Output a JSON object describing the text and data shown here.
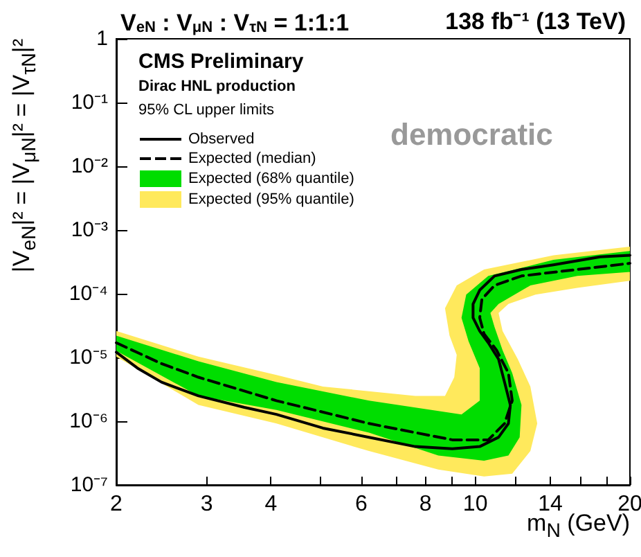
{
  "chart_data": {
    "type": "line",
    "title": "V$_{eN}$ : V$_{μN}$ : V$_{τN}$ = 1:1:1",
    "subtitle": "138 fb⁻¹ (13 TeV)",
    "xlabel": "m$_{N}$ (GeV)",
    "ylabel": "|V$_{eN}$|² = |V$_{μN}$|² = |V$_{τN}$|²",
    "annotations": [
      "CMS Preliminary",
      "Dirac HNL production",
      "95% CL upper limits",
      "democratic"
    ],
    "log": "xy",
    "legend": "top left",
    "xlim": [
      2,
      20
    ],
    "xticks": [
      2,
      3,
      4,
      {
        "value": 5,
        "label": null
      },
      6,
      {
        "value": 7,
        "label": null
      },
      8,
      {
        "value": 9,
        "label": null
      },
      10,
      {
        "value": 12,
        "label": null
      },
      14,
      {
        "value": 16,
        "label": null
      },
      {
        "value": 18,
        "label": null
      },
      20
    ],
    "ylim": [
      1e-07,
      1
    ],
    "yticks": [
      {
        "value": 1e-07,
        "label": "10⁻⁷"
      },
      {
        "value": 1e-06,
        "label": "10⁻⁶"
      },
      {
        "value": 1e-05,
        "label": "10⁻⁵"
      },
      {
        "value": 0.0001,
        "label": "10⁻⁴"
      },
      {
        "value": 0.001,
        "label": "10⁻³"
      },
      {
        "value": 0.01,
        "label": "10⁻²"
      },
      {
        "value": 0.1,
        "label": "10⁻¹"
      },
      1
    ],
    "series": [
      {
        "name": "Expected (95% quantile)",
        "type": "area",
        "color": "#ffe95c",
        "x": [
          2,
          2.89,
          4.1,
          6.21,
          8.47,
          10.4,
          11.8,
          12.8,
          13.2,
          12.8,
          12.1,
          11.3,
          11.1,
          11.6,
          13.1,
          15.8,
          20,
          20,
          14.2,
          10.4,
          9.2,
          8.73,
          8.91,
          9.2,
          9.1,
          8.73,
          7.64,
          5.05,
          4.1,
          2.89,
          2
        ],
        "values": [
          1.03e-05,
          1.8e-06,
          9.2e-07,
          3.4e-07,
          1.75e-07,
          1.36e-07,
          1.5e-07,
          3.4e-07,
          9.2e-07,
          3.5e-06,
          9.4e-06,
          2.6e-05,
          5e-05,
          6.9e-05,
          9.7e-05,
          0.000124,
          0.00016,
          0.00055,
          0.0004,
          0.00024,
          0.000135,
          5.9e-05,
          2.2e-05,
          1.1e-05,
          4.9e-06,
          2.5e-06,
          2.5e-06,
          3.5e-06,
          5.3e-06,
          1.03e-05,
          2.6e-05
        ]
      },
      {
        "name": "Expected (68% quantile)",
        "type": "area",
        "color": "#00dd00",
        "x": [
          2,
          2.89,
          4.1,
          6.21,
          8.47,
          10.4,
          11.6,
          12.2,
          12.3,
          11.8,
          11.3,
          10.9,
          10.7,
          11.1,
          12.8,
          15.8,
          20,
          20,
          14.2,
          10.6,
          9.6,
          9.4,
          9.7,
          10.2,
          10.2,
          9.4,
          6.21,
          4.1,
          2.89,
          2
        ],
        "values": [
          1.27e-05,
          2.5e-06,
          1.5e-06,
          6.6e-07,
          2.9e-07,
          2.4e-07,
          2.9e-07,
          5.6e-07,
          1.8e-06,
          5.7e-06,
          1.3e-05,
          3e-05,
          5e-05,
          6.9e-05,
          0.000135,
          0.00019,
          0.00022,
          0.00047,
          0.00034,
          0.00019,
          9.7e-05,
          4.2e-05,
          1.8e-05,
          6.8e-06,
          2.1e-06,
          1.28e-06,
          2.1e-06,
          4.1e-06,
          8.7e-06,
          2.2e-05
        ]
      },
      {
        "name": "Expected (median)",
        "type": "line",
        "line_style": "dashed",
        "color": "#000000",
        "x": [
          2,
          2.45,
          2.89,
          4.1,
          6.21,
          9.02,
          10.6,
          11.4,
          11.8,
          11.6,
          11.0,
          10.4,
          10.2,
          10.3,
          10.9,
          12.3,
          15.8,
          20
        ],
        "values": [
          1.7e-05,
          8e-06,
          4.9e-06,
          2.1e-06,
          9.2e-07,
          5.1e-07,
          5.1e-07,
          9.2e-07,
          2.1e-06,
          5.7e-06,
          1.3e-05,
          2.35e-05,
          4.2e-05,
          8.2e-05,
          0.000135,
          0.00019,
          0.00024,
          0.0003
        ]
      },
      {
        "name": "Observed",
        "type": "line",
        "line_style": "solid",
        "color": "#000000",
        "x": [
          2,
          2.2,
          2.45,
          2.89,
          3.55,
          4.1,
          5.05,
          6.21,
          7.64,
          9.02,
          10.2,
          11.1,
          11.6,
          11.7,
          11.4,
          11.1,
          10.6,
          10.2,
          9.9,
          9.9,
          10.2,
          10.9,
          12.3,
          14.2,
          17.5,
          20
        ],
        "values": [
          1.21e-05,
          6.8e-06,
          4.1e-06,
          2.5e-06,
          1.65e-06,
          1.28e-06,
          7.8e-07,
          5.6e-07,
          4e-07,
          3.7e-07,
          4e-07,
          5.6e-07,
          9.2e-07,
          1.8e-06,
          4.1e-06,
          9.4e-06,
          1.7e-05,
          2.6e-05,
          4.2e-05,
          6.9e-05,
          0.000114,
          0.00019,
          0.00024,
          0.000285,
          0.00038,
          0.0004
        ]
      }
    ]
  }
}
